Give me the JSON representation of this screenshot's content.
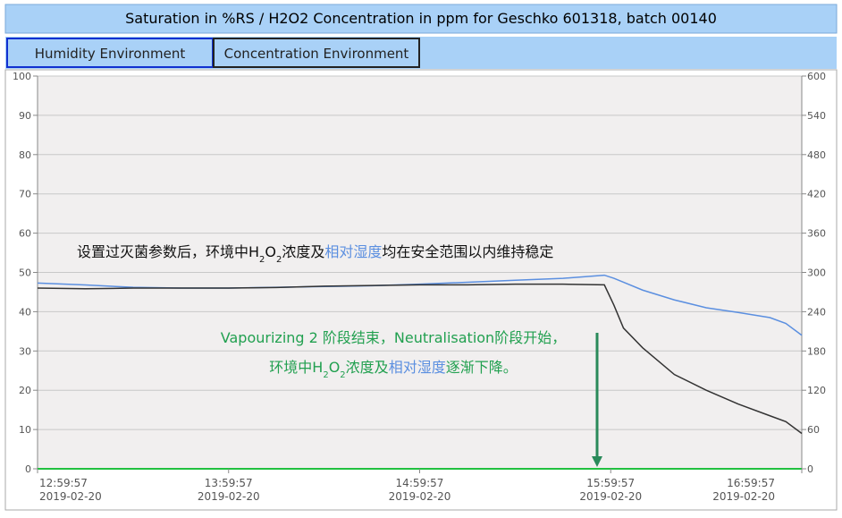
{
  "chart_data": {
    "type": "line",
    "title": "Saturation in %RS / H2O2 Concentration in ppm for Geschko 601318, batch 00140",
    "tabs": [
      "Humidity Environment",
      "Concentration Environment"
    ],
    "x": [
      0,
      15,
      30,
      45,
      60,
      75,
      90,
      105,
      120,
      135,
      150,
      165,
      178,
      181,
      184,
      190,
      200,
      210,
      220,
      230,
      235,
      240
    ],
    "series": [
      {
        "name": "Humidity",
        "color": "#5b8fe0",
        "values": [
          47.3,
          46.8,
          46.2,
          46,
          46,
          46.2,
          46.4,
          46.6,
          47,
          47.5,
          48,
          48.5,
          49.3,
          48.5,
          47.5,
          45.5,
          43,
          41,
          39.8,
          38.5,
          37,
          34
        ]
      },
      {
        "name": "Concentration",
        "color": "#333333",
        "axis": "y2",
        "values": [
          276,
          275,
          276,
          276,
          276,
          277,
          279,
          280,
          281,
          281,
          282,
          282,
          281,
          250,
          215,
          185,
          144,
          120,
          99,
          81,
          72,
          54
        ]
      }
    ],
    "xlim": [
      0,
      240
    ],
    "xticks": [
      {
        "value": 0,
        "label": "12:59:57"
      },
      {
        "value": 60,
        "label": "13:59:57"
      },
      {
        "value": 120,
        "label": "14:59:57"
      },
      {
        "value": 180,
        "label": "15:59:57"
      },
      {
        "value": 240,
        "label": "16:59:57"
      }
    ],
    "xtick_dates": [
      "2019-02-20",
      "2019-02-20",
      "2019-02-20",
      "2019-02-20",
      "2019-02-20"
    ],
    "ylim": [
      0,
      100
    ],
    "yticks": [
      0,
      10,
      20,
      30,
      40,
      50,
      60,
      70,
      80,
      90,
      100
    ],
    "y2lim": [
      0,
      600
    ],
    "y2ticks": [
      0,
      60,
      120,
      180,
      240,
      300,
      360,
      420,
      480,
      540,
      600
    ],
    "grid": true,
    "annotations": [
      [
        "设置过灭菌参数后，环境中H",
        "2",
        "O",
        "2",
        "浓度及",
        "相对湿度",
        "均在安全范围以内维持稳定"
      ],
      [
        "Vapourizing 2 阶段结束，Neutralisation阶段开始，"
      ],
      [
        "环境中H",
        "2",
        "O",
        "2",
        "浓度及",
        "相对湿度",
        "逐渐下降。"
      ]
    ]
  }
}
